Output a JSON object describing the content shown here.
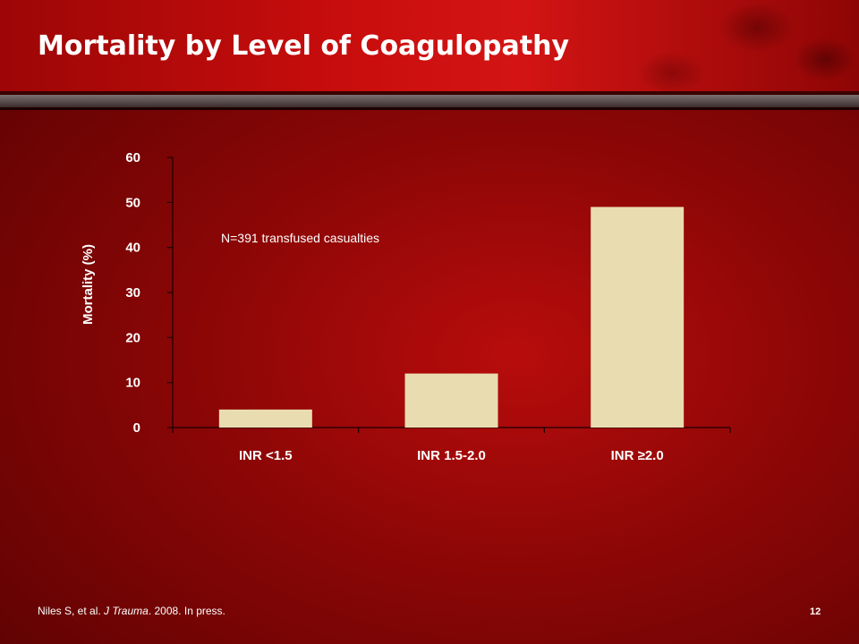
{
  "slide": {
    "title": "Mortality by Level of Coagulopathy",
    "citation_prefix": "Niles S, et al. ",
    "citation_journal": "J Trauma",
    "citation_suffix": ". 2008. In press.",
    "slide_number": "12"
  },
  "colors": {
    "bar": "#e9dcb0",
    "text": "#ffffff",
    "background": "#8a0606"
  },
  "chart_data": {
    "type": "bar",
    "categories": [
      "INR <1.5",
      "INR 1.5-2.0",
      "INR ≥2.0"
    ],
    "values": [
      4,
      12,
      49
    ],
    "xlabel": "",
    "ylabel": "Mortality (%)",
    "ylim": [
      0,
      60
    ],
    "yticks": [
      "0",
      "10",
      "20",
      "30",
      "40",
      "50",
      "60"
    ],
    "annotation": "N=391 transfused casualties",
    "grid": false
  }
}
